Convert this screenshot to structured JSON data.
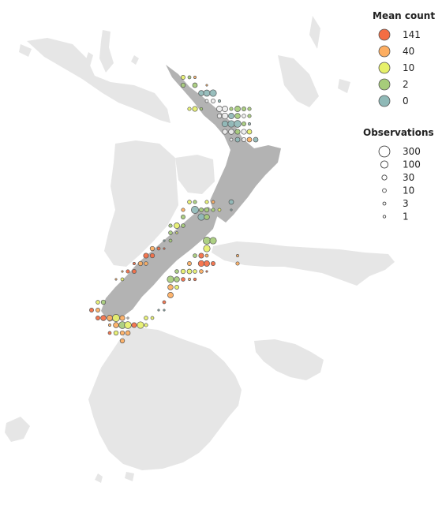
{
  "legends": {
    "mean_count": {
      "title": "Mean count",
      "items": [
        {
          "label": "141",
          "color": "#f46d43"
        },
        {
          "label": "40",
          "color": "#fdae61"
        },
        {
          "label": "10",
          "color": "#e6f06a"
        },
        {
          "label": "2",
          "color": "#a6cc7a"
        },
        {
          "label": "0",
          "color": "#8fb9b7"
        }
      ]
    },
    "observations": {
      "title": "Observations",
      "items": [
        {
          "label": "300",
          "value": 300
        },
        {
          "label": "100",
          "value": 100
        },
        {
          "label": "30",
          "value": 30
        },
        {
          "label": "10",
          "value": 10
        },
        {
          "label": "3",
          "value": 3
        },
        {
          "label": "1",
          "value": 1
        }
      ]
    }
  },
  "colors": {
    "background_land": "#e6e6e6",
    "region_land": "#b3b3b3",
    "zero_count": "#eeeeee",
    "marker_stroke": "#555555"
  }
}
